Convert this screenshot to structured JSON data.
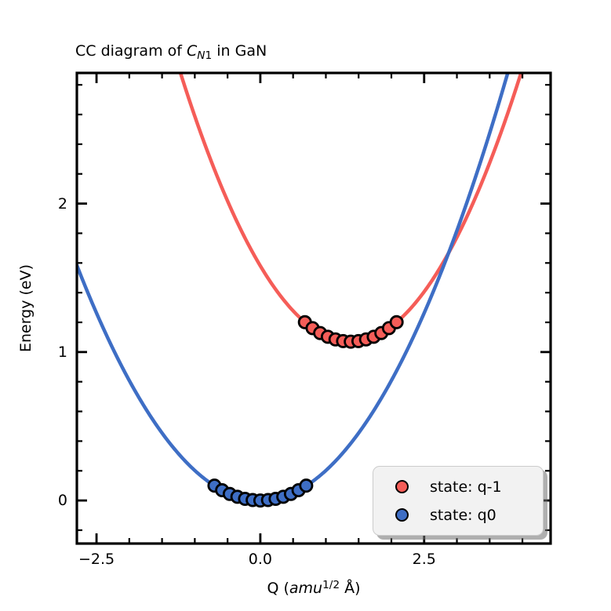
{
  "figure": {
    "title": {
      "prefix": "CC diagram of ",
      "sym": "C",
      "sub_italic": "N",
      "sub_roman": "1",
      "suffix": " in GaN"
    },
    "xlabel": {
      "prefix": "Q (",
      "unit": "amu",
      "sup": "1/2",
      "suffix": " Å)"
    },
    "ylabel": "Energy (eV)",
    "colors": {
      "red": "#f55d58",
      "blue": "#3e6ec5",
      "marker_edge": "#000000",
      "spine": "#000000",
      "legend_bg": "#f2f2f2",
      "legend_border": "#cccccc"
    }
  },
  "chart_data": {
    "type": "line",
    "title": "CC diagram of C_N1 in GaN",
    "xlabel": "Q (amu^1/2 Å)",
    "ylabel": "Energy (eV)",
    "xlim": [
      -2.8,
      4.43
    ],
    "ylim": [
      -0.29,
      2.88
    ],
    "grid": false,
    "ticks_direction": "in",
    "x_major_ticks": [
      -2.5,
      0.0,
      2.5
    ],
    "x_tick_labels": [
      "−2.5",
      "0.0",
      "2.5"
    ],
    "x_minor_step": 0.5,
    "y_major_ticks": [
      0,
      1,
      2
    ],
    "y_tick_labels": [
      "0",
      "1",
      "2"
    ],
    "y_minor_step": 0.2,
    "series": [
      {
        "name": "state: q-1",
        "color": "#f55d58",
        "marker": "o",
        "parabola": {
          "a": 0.268,
          "q0": 1.38,
          "e0": 1.07
        },
        "points": [
          [
            0.68,
            1.201
          ],
          [
            0.797,
            1.161
          ],
          [
            0.913,
            1.128
          ],
          [
            1.03,
            1.103
          ],
          [
            1.147,
            1.085
          ],
          [
            1.263,
            1.074
          ],
          [
            1.38,
            1.07
          ],
          [
            1.497,
            1.074
          ],
          [
            1.613,
            1.085
          ],
          [
            1.73,
            1.103
          ],
          [
            1.847,
            1.128
          ],
          [
            1.963,
            1.161
          ],
          [
            2.08,
            1.201
          ]
        ]
      },
      {
        "name": "state: q0",
        "color": "#3e6ec5",
        "marker": "o",
        "parabola": {
          "a": 0.202,
          "q0": 0.0,
          "e0": 0.0
        },
        "points": [
          [
            -0.7,
            0.1
          ],
          [
            -0.583,
            0.069
          ],
          [
            -0.467,
            0.044
          ],
          [
            -0.35,
            0.025
          ],
          [
            -0.233,
            0.011
          ],
          [
            -0.117,
            0.003
          ],
          [
            0.0,
            0.0
          ],
          [
            0.117,
            0.003
          ],
          [
            0.233,
            0.011
          ],
          [
            0.35,
            0.025
          ],
          [
            0.467,
            0.044
          ],
          [
            0.583,
            0.069
          ],
          [
            0.7,
            0.1
          ]
        ]
      }
    ],
    "legend": {
      "position": "lower right",
      "labels": [
        "state: q-1",
        "state: q0"
      ]
    }
  }
}
